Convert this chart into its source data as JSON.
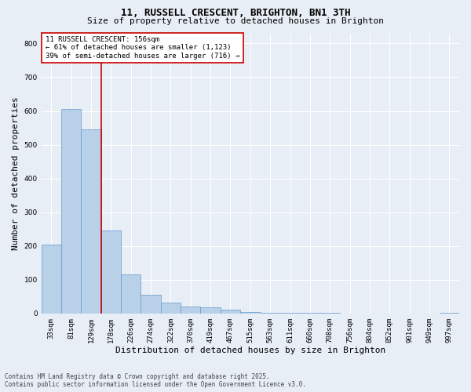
{
  "title": "11, RUSSELL CRESCENT, BRIGHTON, BN1 3TH",
  "subtitle": "Size of property relative to detached houses in Brighton",
  "xlabel": "Distribution of detached houses by size in Brighton",
  "ylabel": "Number of detached properties",
  "footer_line1": "Contains HM Land Registry data © Crown copyright and database right 2025.",
  "footer_line2": "Contains public sector information licensed under the Open Government Licence v3.0.",
  "bin_labels": [
    "33sqm",
    "81sqm",
    "129sqm",
    "178sqm",
    "226sqm",
    "274sqm",
    "322sqm",
    "370sqm",
    "419sqm",
    "467sqm",
    "515sqm",
    "563sqm",
    "611sqm",
    "660sqm",
    "708sqm",
    "756sqm",
    "804sqm",
    "852sqm",
    "901sqm",
    "949sqm",
    "997sqm"
  ],
  "bar_values": [
    205,
    605,
    545,
    245,
    115,
    55,
    33,
    20,
    18,
    12,
    5,
    2,
    1,
    1,
    1,
    0,
    0,
    0,
    0,
    0,
    1
  ],
  "bar_color": "#b8d0e8",
  "bar_edge_color": "#6699cc",
  "property_line_x": 2.5,
  "annotation_text_line1": "11 RUSSELL CRESCENT: 156sqm",
  "annotation_text_line2": "← 61% of detached houses are smaller (1,123)",
  "annotation_text_line3": "39% of semi-detached houses are larger (716) →",
  "annotation_box_color": "#cc0000",
  "annotation_bg": "#ffffff",
  "ylim": [
    0,
    830
  ],
  "yticks": [
    0,
    100,
    200,
    300,
    400,
    500,
    600,
    700,
    800
  ],
  "bg_color": "#e8eef5",
  "plot_bg_color": "#e8eef5",
  "grid_color": "#ffffff",
  "title_fontsize": 9,
  "subtitle_fontsize": 8,
  "tick_fontsize": 6.5,
  "label_fontsize": 8,
  "footer_fontsize": 5.5,
  "annotation_fontsize": 6.5
}
